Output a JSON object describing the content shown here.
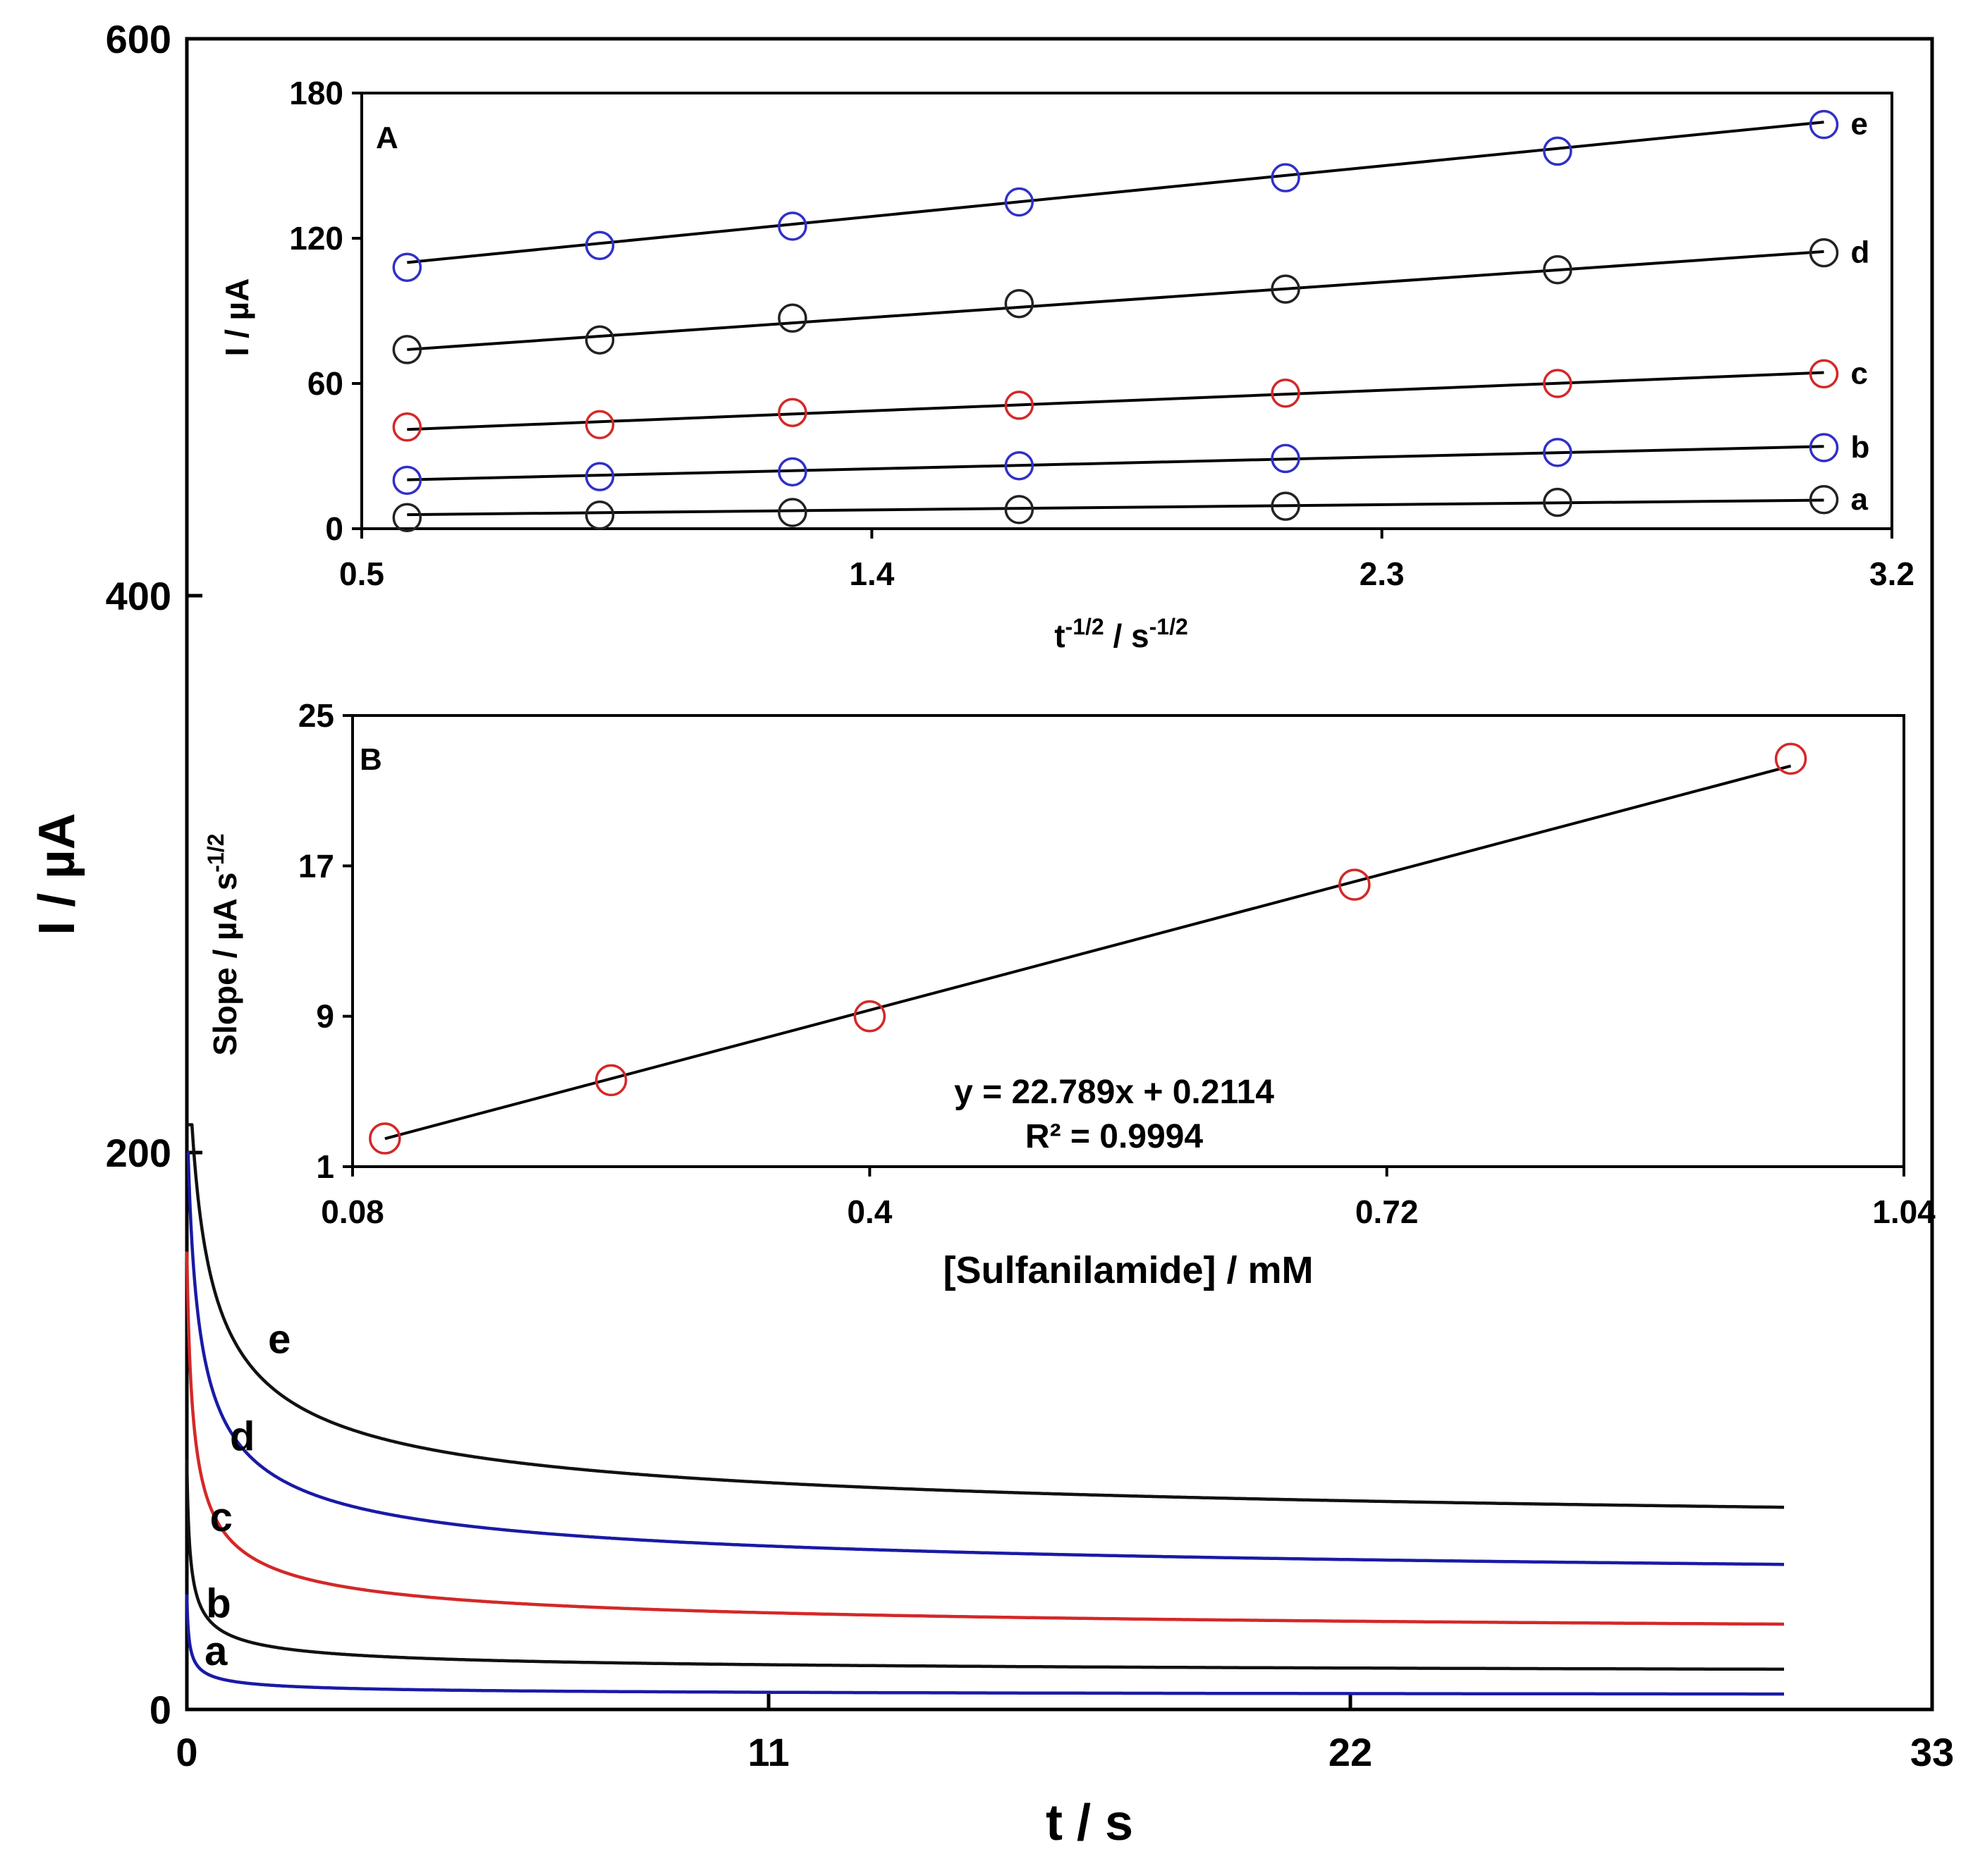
{
  "chart_data": [
    {
      "id": "main",
      "type": "line",
      "title": "",
      "xlabel": "t / s",
      "ylabel": "I / µA",
      "xlim": [
        0,
        33
      ],
      "ylim": [
        0,
        600
      ],
      "xticks": [
        "0",
        "11",
        "22",
        "33"
      ],
      "yticks": [
        "0",
        "200",
        "400",
        "600"
      ],
      "series": [
        {
          "name": "a",
          "color": "#1a1aa6",
          "I0": 200,
          "tau": 0.02,
          "plateau": 4.6,
          "k": 5.2,
          "t_end": 30.2
        },
        {
          "name": "b",
          "color": "#111111",
          "I0": 200,
          "tau": 0.03,
          "plateau": 12,
          "k": 13.5,
          "t_end": 30.2
        },
        {
          "name": "c",
          "color": "#d42828",
          "I0": 200,
          "tau": 0.06,
          "plateau": 24.4,
          "k": 34.3,
          "t_end": 30.2
        },
        {
          "name": "d",
          "color": "#1a1aa6",
          "I0": 200,
          "tau": 0.1,
          "plateau": 42,
          "k": 55.6,
          "t_end": 30.2
        },
        {
          "name": "e",
          "color": "#111111",
          "I0": 210,
          "tau": 0.15,
          "plateau": 59,
          "k": 75,
          "t_end": 30.2
        }
      ],
      "curve_labels": [
        {
          "name": "e",
          "t": 1.75,
          "I": 128
        },
        {
          "name": "d",
          "t": 1.05,
          "I": 93
        },
        {
          "name": "c",
          "t": 0.65,
          "I": 64
        },
        {
          "name": "b",
          "t": 0.6,
          "I": 33
        },
        {
          "name": "a",
          "t": 0.55,
          "I": 16
        }
      ]
    },
    {
      "id": "inset-A",
      "type": "scatter",
      "panel_label": "A",
      "xlabel_main": "t",
      "xlabel_exp1": "-1/2",
      "xlabel_mid": " / s",
      "xlabel_exp2": "-1/2",
      "ylabel": "I / µA",
      "xlim": [
        0.5,
        3.2
      ],
      "ylim": [
        0,
        180
      ],
      "xticks": [
        "0.5",
        "1.4",
        "2.3",
        "3.2"
      ],
      "yticks": [
        "0",
        "60",
        "120",
        "180"
      ],
      "x": [
        0.58,
        0.92,
        1.26,
        1.66,
        2.13,
        2.61,
        3.08
      ],
      "series": [
        {
          "name": "a",
          "color": "#222222",
          "values": [
            4.6,
            5.6,
            6.7,
            7.9,
            9.3,
            10.9,
            12.0
          ],
          "fit": [
            5.8,
            11.8
          ]
        },
        {
          "name": "b",
          "color": "#3030c8",
          "values": [
            20.0,
            21.5,
            23.5,
            26.0,
            29.0,
            31.5,
            33.5
          ],
          "fit": [
            20.2,
            34.0
          ]
        },
        {
          "name": "c",
          "color": "#d42828",
          "values": [
            42.0,
            43.0,
            48.0,
            51.0,
            56.0,
            60.0,
            64.0
          ],
          "fit": [
            41.0,
            64.5
          ]
        },
        {
          "name": "d",
          "color": "#222222",
          "values": [
            74.0,
            78.0,
            87.0,
            93.0,
            99.0,
            107.0,
            114.0
          ],
          "fit": [
            74.0,
            114.5
          ]
        },
        {
          "name": "e",
          "color": "#3030c8",
          "values": [
            108.0,
            117.0,
            125.0,
            135.0,
            145.0,
            156.0,
            167.0
          ],
          "fit": [
            110.0,
            168.0
          ]
        }
      ]
    },
    {
      "id": "inset-B",
      "type": "scatter",
      "panel_label": "B",
      "xlabel": "[Sulfanilamide] / mM",
      "ylabel_main": "Slope / µA s",
      "ylabel_exp": "-1/2",
      "xlim": [
        0.08,
        1.04
      ],
      "ylim": [
        1,
        25
      ],
      "xticks": [
        "0.08",
        "0.4",
        "0.72",
        "1.04"
      ],
      "yticks": [
        "1",
        "9",
        "17",
        "25"
      ],
      "x": [
        0.1,
        0.24,
        0.4,
        0.7,
        0.97
      ],
      "values": [
        2.5,
        5.6,
        9.0,
        16.0,
        22.7
      ],
      "point_color": "#d42828",
      "fit": {
        "slope": 22.789,
        "intercept": 0.2114,
        "x_from": 0.1,
        "x_to": 0.97
      },
      "equation": "y = 22.789x  + 0.2114",
      "r2": "R² = 0.9994"
    }
  ]
}
